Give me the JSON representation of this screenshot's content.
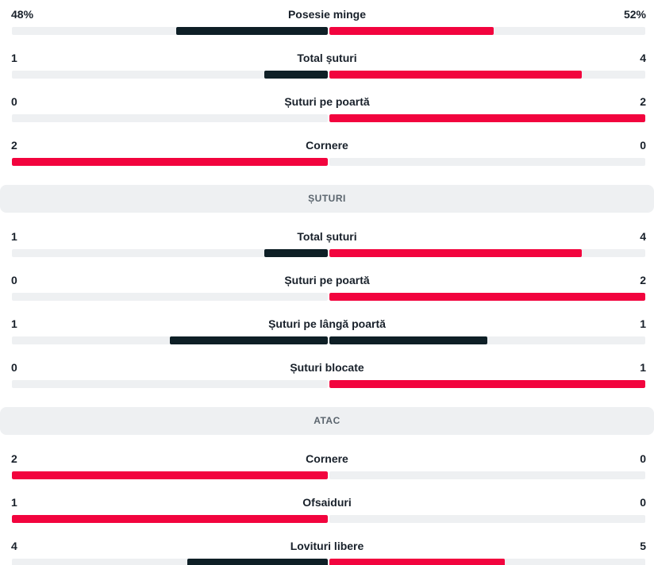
{
  "colors": {
    "lead_bar": "#f2043e",
    "trail_bar": "#0e1f26",
    "track": "#eef0f2",
    "text": "#18202a",
    "section_bg": "#eef0f2"
  },
  "groups": [
    {
      "title": "",
      "stats": [
        {
          "name": "Posesie minge",
          "home": "48%",
          "away": "52%",
          "home_value": 48,
          "away_value": 52
        },
        {
          "name": "Total șuturi",
          "home": "1",
          "away": "4",
          "home_value": 1,
          "away_value": 4
        },
        {
          "name": "Șuturi pe poartă",
          "home": "0",
          "away": "2",
          "home_value": 0,
          "away_value": 2
        },
        {
          "name": "Cornere",
          "home": "2",
          "away": "0",
          "home_value": 2,
          "away_value": 0
        }
      ]
    },
    {
      "title": "ȘUTURI",
      "stats": [
        {
          "name": "Total șuturi",
          "home": "1",
          "away": "4",
          "home_value": 1,
          "away_value": 4
        },
        {
          "name": "Șuturi pe poartă",
          "home": "0",
          "away": "2",
          "home_value": 0,
          "away_value": 2
        },
        {
          "name": "Șuturi pe lângă poartă",
          "home": "1",
          "away": "1",
          "home_value": 1,
          "away_value": 1
        },
        {
          "name": "Șuturi blocate",
          "home": "0",
          "away": "1",
          "home_value": 0,
          "away_value": 1
        }
      ]
    },
    {
      "title": "ATAC",
      "stats": [
        {
          "name": "Cornere",
          "home": "2",
          "away": "0",
          "home_value": 2,
          "away_value": 0
        },
        {
          "name": "Ofsaiduri",
          "home": "1",
          "away": "0",
          "home_value": 1,
          "away_value": 0
        },
        {
          "name": "Lovituri libere",
          "home": "4",
          "away": "5",
          "home_value": 4,
          "away_value": 5
        }
      ]
    }
  ]
}
